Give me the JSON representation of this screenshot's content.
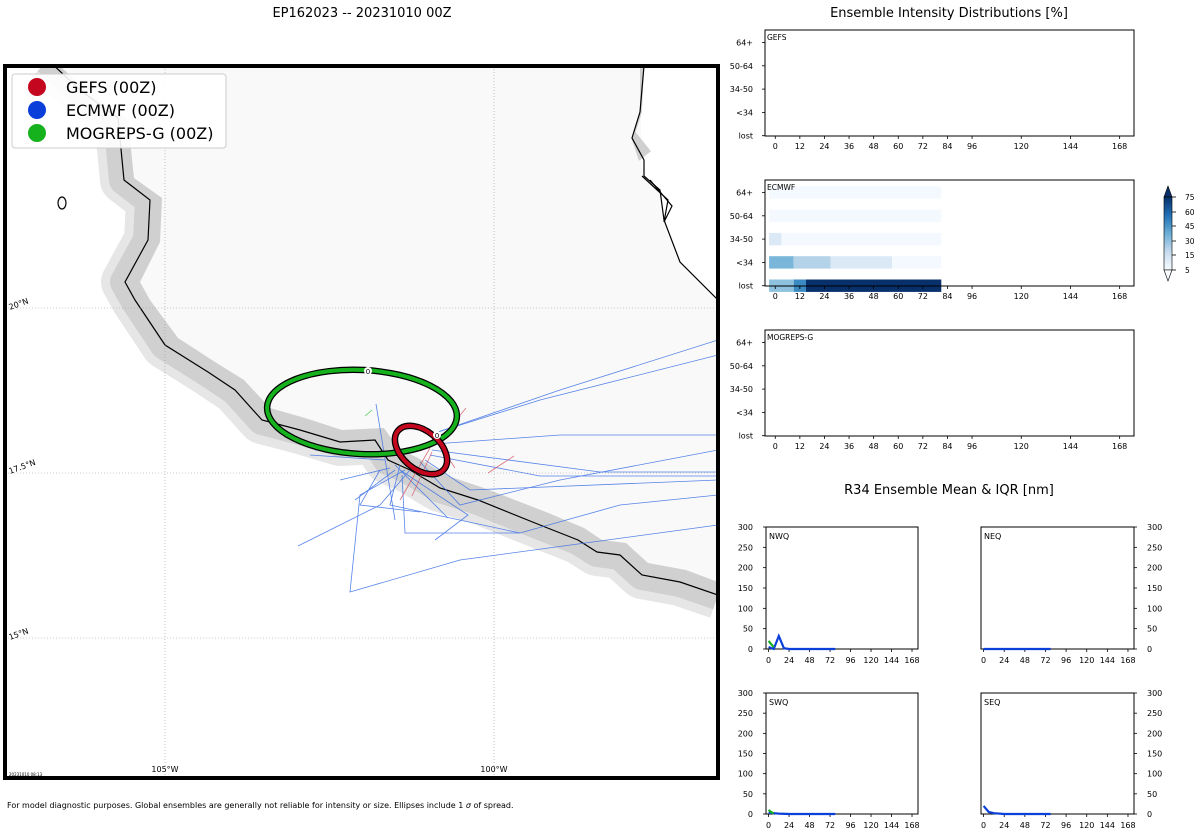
{
  "storm_title": "EP162023 -- 20231010 00Z",
  "footnote_prefix": "For model diagnostic purposes. Global ensembles are generally not reliable for intensity or size. Ellipses include 1",
  "footnote_suffix": "of spread.",
  "timestamp_small": "20231010 08:13",
  "map": {
    "lat_labels": [
      "20°N",
      "17.5°N",
      "15°N"
    ],
    "lon_labels": [
      "105°W",
      "100°W"
    ],
    "legend": [
      {
        "label": "GEFS (00Z)",
        "color": "#c4061e"
      },
      {
        "label": "ECMWF (00Z)",
        "color": "#0a3fd9"
      },
      {
        "label": "MOGREPS-G (00Z)",
        "color": "#16b21e"
      }
    ],
    "ellipse_labels": [
      "0",
      "0"
    ]
  },
  "intensity": {
    "title": "Ensemble Intensity Distributions [%]",
    "categories": [
      "64+",
      "50-64",
      "34-50",
      "<34",
      "lost"
    ],
    "hours": [
      0,
      12,
      24,
      36,
      48,
      60,
      72,
      84,
      96,
      120,
      144,
      168
    ],
    "panels": [
      "GEFS",
      "ECMWF",
      "MOGREPS-G"
    ],
    "colorbar_ticks": [
      75,
      60,
      45,
      30,
      15,
      5
    ]
  },
  "r34": {
    "title": "R34 Ensemble Mean & IQR [nm]",
    "quadrants": [
      "NWQ",
      "NEQ",
      "SWQ",
      "SEQ"
    ],
    "yticks": [
      300,
      250,
      200,
      150,
      100,
      50,
      0
    ],
    "xticks": [
      0,
      24,
      48,
      72,
      96,
      120,
      144,
      168
    ]
  },
  "chart_data": [
    {
      "type": "heatmap",
      "title": "GEFS",
      "xlabel": "",
      "ylabel": "",
      "x": [
        0,
        12,
        24,
        36,
        48,
        60,
        72,
        84,
        96,
        120,
        144,
        168
      ],
      "y": [
        "64+",
        "50-64",
        "34-50",
        "<34",
        "lost"
      ],
      "cells": []
    },
    {
      "type": "heatmap",
      "title": "ECMWF",
      "xlabel": "",
      "ylabel": "",
      "x": [
        0,
        12,
        24,
        36,
        48,
        60,
        72,
        84,
        96,
        120,
        144,
        168
      ],
      "y": [
        "64+",
        "50-64",
        "34-50",
        "<34",
        "lost"
      ],
      "cells": [
        {
          "y": "64+",
          "x0": -3,
          "x1": 81,
          "value": 2
        },
        {
          "y": "50-64",
          "x0": -3,
          "x1": 81,
          "value": 2
        },
        {
          "y": "34-50",
          "x0": -3,
          "x1": 3,
          "value": 15
        },
        {
          "y": "34-50",
          "x0": 3,
          "x1": 81,
          "value": 2
        },
        {
          "y": "<34",
          "x0": -3,
          "x1": 9,
          "value": 50
        },
        {
          "y": "<34",
          "x0": 9,
          "x1": 27,
          "value": 33
        },
        {
          "y": "<34",
          "x0": 27,
          "x1": 57,
          "value": 15
        },
        {
          "y": "<34",
          "x0": 57,
          "x1": 81,
          "value": 2
        },
        {
          "y": "lost",
          "x0": -3,
          "x1": 9,
          "value": 45
        },
        {
          "y": "lost",
          "x0": 9,
          "x1": 15,
          "value": 65
        },
        {
          "y": "lost",
          "x0": 15,
          "x1": 81,
          "value": 90
        }
      ]
    },
    {
      "type": "heatmap",
      "title": "MOGREPS-G",
      "xlabel": "",
      "ylabel": "",
      "x": [
        0,
        12,
        24,
        36,
        48,
        60,
        72,
        84,
        96,
        120,
        144,
        168
      ],
      "y": [
        "64+",
        "50-64",
        "34-50",
        "<34",
        "lost"
      ],
      "cells": []
    },
    {
      "type": "line",
      "title": "NWQ",
      "ylim": [
        0,
        300
      ],
      "series": [
        {
          "color": "#0a3fd9",
          "x": [
            0,
            6,
            12,
            18,
            24,
            36,
            48,
            60,
            72,
            78
          ],
          "y": [
            5,
            0,
            32,
            2,
            0,
            0,
            0,
            0,
            0,
            0
          ]
        },
        {
          "color": "#16b21e",
          "x": [
            0,
            3,
            6
          ],
          "y": [
            20,
            12,
            5
          ]
        }
      ]
    },
    {
      "type": "line",
      "title": "NEQ",
      "ylim": [
        0,
        300
      ],
      "series": [
        {
          "color": "#0a3fd9",
          "x": [
            0,
            24,
            48,
            72,
            78
          ],
          "y": [
            0,
            0,
            0,
            0,
            0
          ]
        }
      ]
    },
    {
      "type": "line",
      "title": "SWQ",
      "ylim": [
        0,
        300
      ],
      "series": [
        {
          "color": "#0a3fd9",
          "x": [
            0,
            6,
            12,
            24,
            36,
            48,
            60,
            72,
            78
          ],
          "y": [
            3,
            2,
            1,
            0,
            0,
            0,
            0,
            0,
            0
          ]
        },
        {
          "color": "#16b21e",
          "x": [
            0,
            3,
            6
          ],
          "y": [
            10,
            5,
            2
          ]
        }
      ]
    },
    {
      "type": "line",
      "title": "SEQ",
      "ylim": [
        0,
        300
      ],
      "series": [
        {
          "color": "#0a3fd9",
          "x": [
            0,
            6,
            12,
            24,
            36,
            48,
            60,
            72,
            78
          ],
          "y": [
            20,
            5,
            2,
            0,
            0,
            0,
            0,
            0,
            0
          ]
        }
      ]
    }
  ]
}
